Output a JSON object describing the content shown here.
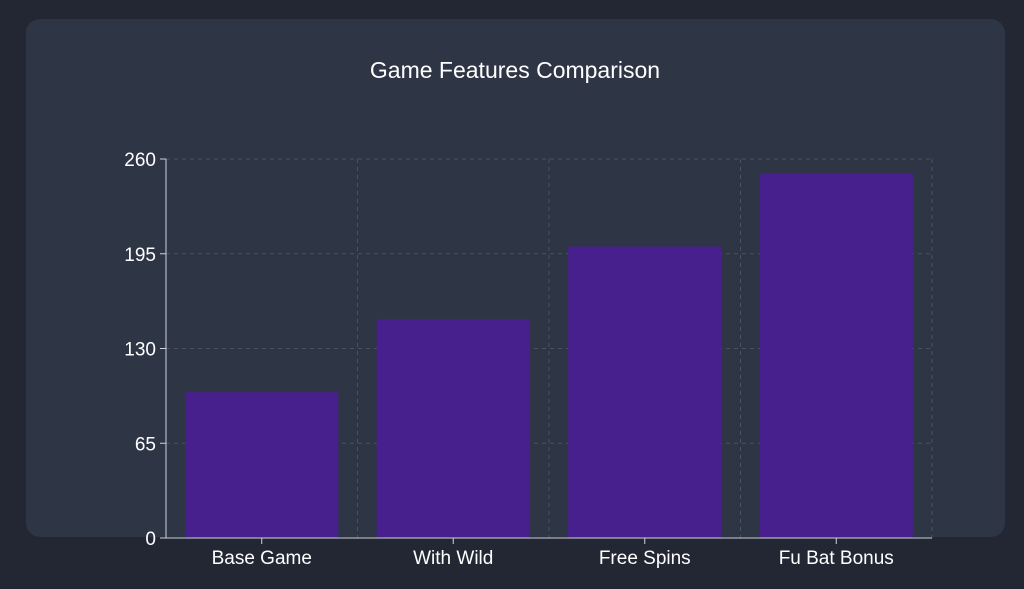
{
  "chart_data": {
    "type": "bar",
    "title": "Game Features Comparison",
    "categories": [
      "Base Game",
      "With Wild",
      "Free Spins",
      "Fu Bat Bonus"
    ],
    "values": [
      100,
      150,
      200,
      250
    ],
    "ylim": [
      0,
      260
    ],
    "yticks": [
      "0",
      "65",
      "130",
      "195",
      "260"
    ],
    "xlabel": "",
    "ylabel": "",
    "grid": true,
    "colors": {
      "bar": "#48208e",
      "grid": "#4a5262",
      "axis": "#cfd3da",
      "text": "#ffffff",
      "card": "#2e3544",
      "background": "#222733"
    }
  }
}
